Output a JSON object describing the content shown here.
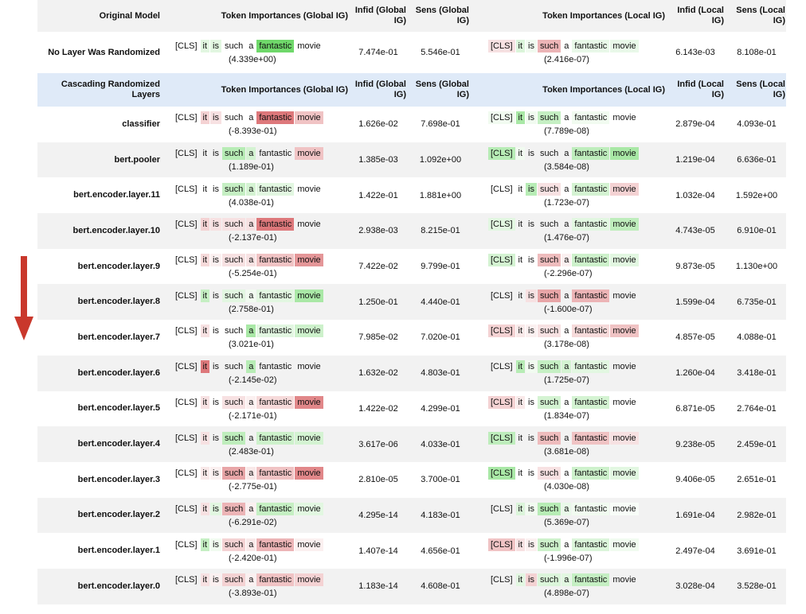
{
  "headers": {
    "top": [
      "Original Model",
      "Token Importances (Global IG)",
      "Infid (Global IG)",
      "Sens (Global IG)",
      "Token Importances (Local IG)",
      "Infid (Local IG)",
      "Sens (Local IG)"
    ],
    "cascade": [
      "Cascading Randomized Layers",
      "Token Importances (Global IG)",
      "Infid (Global IG)",
      "Sens (Global IG)",
      "Token Importances (Local IG)",
      "Infid (Local IG)",
      "Sens (Local IG)"
    ]
  },
  "tokens": [
    "[CLS]",
    "it",
    "is",
    "such",
    "a",
    "fantastic",
    "movie"
  ],
  "colors": {
    "pos": "#6fd86a",
    "neg": "#d9696c",
    "neutral": "#ffffff"
  },
  "original": {
    "name": "No Layer Was Randomized",
    "g_intensity": [
      0,
      0.2,
      0.2,
      0,
      0,
      1.0,
      0
    ],
    "g_score": "(4.339e+00)",
    "g_infid": "7.474e-01",
    "g_sens": "5.546e-01",
    "l_intensity": [
      -0.2,
      0.25,
      0.1,
      -0.5,
      0,
      0.15,
      0.15
    ],
    "l_score": "(2.416e-07)",
    "l_infid": "6.143e-03",
    "l_sens": "8.108e-01"
  },
  "rows": [
    {
      "name": "classifier",
      "g_intensity": [
        0,
        -0.3,
        -0.2,
        0,
        0,
        -0.9,
        -0.4
      ],
      "g_score": "(-8.393e-01)",
      "g_infid": "1.626e-02",
      "g_sens": "7.698e-01",
      "l_intensity": [
        0.1,
        0.6,
        0.1,
        0.4,
        0,
        0.1,
        0
      ],
      "l_score": "(7.789e-08)",
      "l_infid": "2.879e-04",
      "l_sens": "4.093e-01"
    },
    {
      "name": "bert.pooler",
      "g_intensity": [
        0,
        0,
        0,
        0.5,
        0.3,
        0,
        -0.4
      ],
      "g_score": "(1.189e-01)",
      "g_infid": "1.385e-03",
      "g_sens": "1.092e+00",
      "l_intensity": [
        0.5,
        0.1,
        0,
        0,
        0,
        0.45,
        0.6
      ],
      "l_score": "(3.584e-08)",
      "l_infid": "1.219e-04",
      "l_sens": "6.636e-01"
    },
    {
      "name": "bert.encoder.layer.11",
      "g_intensity": [
        0,
        0,
        0,
        0.4,
        0.3,
        0.2,
        0
      ],
      "g_score": "(4.038e-01)",
      "g_infid": "1.422e-01",
      "g_sens": "1.881e+00",
      "l_intensity": [
        0,
        0,
        0.5,
        -0.2,
        0,
        0.3,
        -0.3
      ],
      "l_score": "(1.723e-07)",
      "l_infid": "1.032e-04",
      "l_sens": "1.592e+00"
    },
    {
      "name": "bert.encoder.layer.10",
      "g_intensity": [
        0,
        -0.3,
        -0.2,
        -0.2,
        -0.2,
        -0.9,
        0
      ],
      "g_score": "(-2.137e-01)",
      "g_infid": "2.938e-03",
      "g_sens": "8.215e-01",
      "l_intensity": [
        0.2,
        0,
        0,
        0,
        0,
        0.2,
        0.45
      ],
      "l_score": "(1.476e-07)",
      "l_infid": "4.743e-05",
      "l_sens": "6.910e-01"
    },
    {
      "name": "bert.encoder.layer.9",
      "g_intensity": [
        0,
        -0.25,
        -0.1,
        -0.2,
        -0.2,
        -0.4,
        -0.7
      ],
      "g_score": "(-5.254e-01)",
      "g_infid": "7.422e-02",
      "g_sens": "9.799e-01",
      "l_intensity": [
        0.3,
        0,
        0,
        -0.45,
        -0.1,
        0.35,
        0.2
      ],
      "l_score": "(-2.296e-07)",
      "l_infid": "9.873e-05",
      "l_sens": "1.130e+00"
    },
    {
      "name": "bert.encoder.layer.8",
      "g_intensity": [
        0,
        0.4,
        0,
        0.2,
        0.1,
        0.2,
        0.6
      ],
      "g_score": "(2.758e-01)",
      "g_infid": "1.250e-01",
      "g_sens": "4.440e-01",
      "l_intensity": [
        0,
        0,
        -0.2,
        -0.6,
        0,
        -0.5,
        0
      ],
      "l_score": "(-1.600e-07)",
      "l_infid": "1.599e-04",
      "l_sens": "6.735e-01"
    },
    {
      "name": "bert.encoder.layer.7",
      "g_intensity": [
        0,
        -0.2,
        0,
        0,
        0.6,
        0.2,
        0.35
      ],
      "g_score": "(3.021e-01)",
      "g_infid": "7.985e-02",
      "g_sens": "7.020e-01",
      "l_intensity": [
        -0.3,
        -0.15,
        -0.1,
        -0.2,
        0,
        -0.25,
        -0.4
      ],
      "l_score": "(3.178e-08)",
      "l_infid": "4.857e-05",
      "l_sens": "4.088e-01"
    },
    {
      "name": "bert.encoder.layer.6",
      "g_intensity": [
        0,
        -0.9,
        0,
        0,
        0.5,
        0,
        0
      ],
      "g_score": "(-2.145e-02)",
      "g_infid": "1.632e-02",
      "g_sens": "4.803e-01",
      "l_intensity": [
        0,
        0.5,
        0.1,
        0.4,
        0.3,
        0.2,
        0
      ],
      "l_score": "(1.725e-07)",
      "l_infid": "1.260e-04",
      "l_sens": "3.418e-01"
    },
    {
      "name": "bert.encoder.layer.5",
      "g_intensity": [
        0,
        -0.2,
        0,
        -0.2,
        -0.1,
        -0.25,
        -0.8
      ],
      "g_score": "(-2.171e-01)",
      "g_infid": "1.422e-02",
      "g_sens": "4.299e-01",
      "l_intensity": [
        -0.3,
        -0.15,
        0,
        0.3,
        0,
        0.3,
        0
      ],
      "l_score": "(1.834e-07)",
      "l_infid": "6.871e-05",
      "l_sens": "2.764e-01"
    },
    {
      "name": "bert.encoder.layer.4",
      "g_intensity": [
        0,
        -0.2,
        0,
        0.45,
        0,
        0.35,
        0.3
      ],
      "g_score": "(2.483e-01)",
      "g_infid": "3.617e-06",
      "g_sens": "4.033e-01",
      "l_intensity": [
        0.45,
        0,
        0,
        -0.45,
        0,
        -0.4,
        -0.2
      ],
      "l_score": "(3.681e-08)",
      "l_infid": "9.238e-05",
      "l_sens": "2.459e-01"
    },
    {
      "name": "bert.encoder.layer.3",
      "g_intensity": [
        0,
        -0.15,
        -0.1,
        -0.6,
        -0.15,
        -0.4,
        -0.8
      ],
      "g_score": "(-2.775e-01)",
      "g_infid": "2.810e-05",
      "g_sens": "3.700e-01",
      "l_intensity": [
        0.6,
        0,
        0,
        -0.2,
        0,
        0.35,
        0.2
      ],
      "l_score": "(4.030e-08)",
      "l_infid": "9.406e-05",
      "l_sens": "2.651e-01"
    },
    {
      "name": "bert.encoder.layer.2",
      "g_intensity": [
        0,
        -0.2,
        0.2,
        -0.5,
        -0.1,
        0.4,
        0.2
      ],
      "g_score": "(-6.291e-02)",
      "g_infid": "4.295e-14",
      "g_sens": "4.183e-01",
      "l_intensity": [
        0,
        0.25,
        0.1,
        0.5,
        0.15,
        0.1,
        0.05
      ],
      "l_score": "(5.369e-07)",
      "l_infid": "1.691e-04",
      "l_sens": "2.982e-01"
    },
    {
      "name": "bert.encoder.layer.1",
      "g_intensity": [
        0,
        0.4,
        0.1,
        -0.3,
        -0.15,
        -0.5,
        -0.1
      ],
      "g_score": "(-2.420e-01)",
      "g_infid": "1.407e-14",
      "g_sens": "4.656e-01",
      "l_intensity": [
        -0.4,
        -0.2,
        -0.1,
        0.35,
        0,
        0.25,
        0.1
      ],
      "l_score": "(-1.996e-07)",
      "l_infid": "2.497e-04",
      "l_sens": "3.691e-01"
    },
    {
      "name": "bert.encoder.layer.0",
      "g_intensity": [
        0,
        -0.2,
        -0.1,
        -0.3,
        -0.1,
        -0.4,
        -0.3
      ],
      "g_score": "(-3.893e-01)",
      "g_infid": "1.183e-14",
      "g_sens": "4.608e-01",
      "l_intensity": [
        0,
        0.2,
        -0.3,
        0.25,
        0.2,
        0.4,
        0
      ],
      "l_score": "(4.898e-07)",
      "l_infid": "3.028e-04",
      "l_sens": "3.528e-01"
    }
  ]
}
